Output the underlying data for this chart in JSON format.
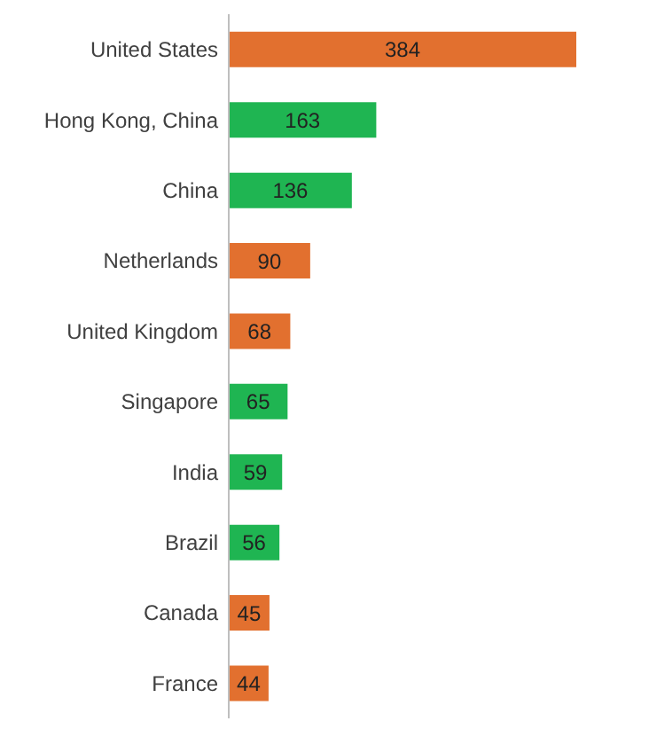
{
  "chart_data": {
    "type": "bar",
    "orientation": "horizontal",
    "categories": [
      "United States",
      "Hong Kong, China",
      "China",
      "Netherlands",
      "United Kingdom",
      "Singapore",
      "India",
      "Brazil",
      "Canada",
      "France"
    ],
    "values": [
      384,
      163,
      136,
      90,
      68,
      65,
      59,
      56,
      45,
      44
    ],
    "colors": [
      "#e2702f",
      "#1fb552",
      "#1fb552",
      "#e2702f",
      "#e2702f",
      "#1fb552",
      "#1fb552",
      "#1fb552",
      "#e2702f",
      "#e2702f"
    ],
    "data_labels": true,
    "tick_labels": "y",
    "grid": false,
    "legend": false
  }
}
